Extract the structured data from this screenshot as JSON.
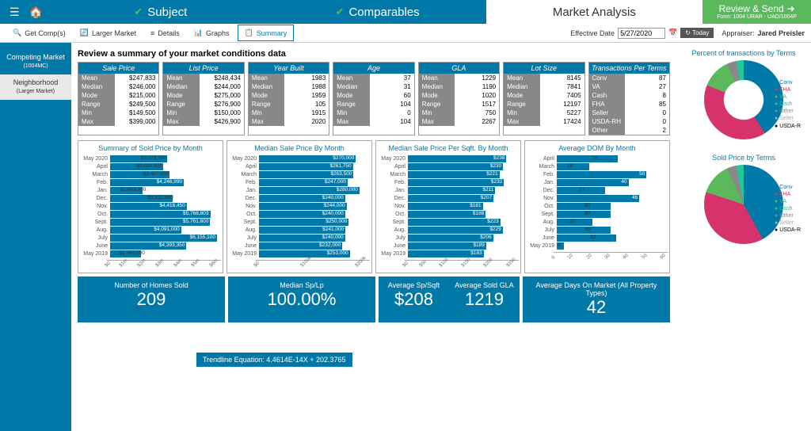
{
  "topbar": {
    "tabs": [
      {
        "label": "Subject",
        "checked": true
      },
      {
        "label": "Comparables",
        "checked": true
      },
      {
        "label": "Market Analysis",
        "active": true
      }
    ],
    "review": {
      "label": "Review & Send",
      "sub": "Form: 1004 URAR - UAD/1004P"
    }
  },
  "subbar": {
    "items": [
      "Get Comp(s)",
      "Larger Market",
      "Details",
      "Graphs",
      "Summary"
    ],
    "selected": 4,
    "eff_date_label": "Effective Date",
    "eff_date": "5/27/2020",
    "today": "Today",
    "appraiser_label": "Appraiser:",
    "appraiser": "Jared Preisler"
  },
  "sidebar": [
    {
      "label": "Competing Market",
      "sub": "(1004MC)"
    },
    {
      "label": "Neighborhood",
      "sub": "(Larger Market)",
      "sel": true
    }
  ],
  "title": "Review a summary of your market conditions data",
  "stats": [
    {
      "hdr": "Sale Price",
      "rows": [
        [
          "Mean",
          "$247,833"
        ],
        [
          "Median",
          "$246,000"
        ],
        [
          "Mode",
          "$215,000"
        ],
        [
          "Range",
          "$249,500"
        ],
        [
          "Min",
          "$149,500"
        ],
        [
          "Max",
          "$399,000"
        ]
      ]
    },
    {
      "hdr": "List Price",
      "rows": [
        [
          "Mean",
          "$248,434"
        ],
        [
          "Median",
          "$244,000"
        ],
        [
          "Mode",
          "$275,000"
        ],
        [
          "Range",
          "$276,900"
        ],
        [
          "Min",
          "$150,000"
        ],
        [
          "Max",
          "$426,900"
        ]
      ]
    },
    {
      "hdr": "Year Built",
      "rows": [
        [
          "Mean",
          "1983"
        ],
        [
          "Median",
          "1988"
        ],
        [
          "Mode",
          "1959"
        ],
        [
          "Range",
          "105"
        ],
        [
          "Min",
          "1915"
        ],
        [
          "Max",
          "2020"
        ]
      ]
    },
    {
      "hdr": "Age",
      "rows": [
        [
          "Mean",
          "37"
        ],
        [
          "Median",
          "31"
        ],
        [
          "Mode",
          "60"
        ],
        [
          "Range",
          "104"
        ],
        [
          "Min",
          "0"
        ],
        [
          "Max",
          "104"
        ]
      ]
    },
    {
      "hdr": "GLA",
      "rows": [
        [
          "Mean",
          "1229"
        ],
        [
          "Median",
          "1190"
        ],
        [
          "Mode",
          "1020"
        ],
        [
          "Range",
          "1517"
        ],
        [
          "Min",
          "750"
        ],
        [
          "Max",
          "2267"
        ]
      ]
    },
    {
      "hdr": "Lot Size",
      "rows": [
        [
          "Mean",
          "8145"
        ],
        [
          "Median",
          "7841"
        ],
        [
          "Mode",
          "7405"
        ],
        [
          "Range",
          "12197"
        ],
        [
          "Min",
          "5227"
        ],
        [
          "Max",
          "17424"
        ]
      ]
    },
    {
      "hdr": "Transactions Per Terms",
      "rows": [
        [
          "Conv",
          "87"
        ],
        [
          "VA",
          "27"
        ],
        [
          "Cash",
          "8"
        ],
        [
          "FHA",
          "85"
        ],
        [
          "Seller",
          "0"
        ],
        [
          "USDA-RH",
          "0"
        ],
        [
          "Other",
          "2"
        ]
      ]
    }
  ],
  "charts": [
    {
      "title": "Summary of Sold Price by Month",
      "max": 6200000,
      "fmt": "$",
      "bars": [
        {
          "l": "May 2020",
          "v": 3273700,
          "t": "$3,273,700"
        },
        {
          "l": "April",
          "v": 3039500,
          "t": "$3,039,500"
        },
        {
          "l": "March",
          "v": 3407650,
          "t": "$3,407,650"
        },
        {
          "l": "Feb.",
          "v": 4246990,
          "t": "$4,246,990"
        },
        {
          "l": "Jan.",
          "v": 1863900,
          "t": "$1,863,900"
        },
        {
          "l": "Dec.",
          "v": 3622900,
          "t": "$3,622,900"
        },
        {
          "l": "Nov.",
          "v": 4416450,
          "t": "$4,416,450"
        },
        {
          "l": "Oct.",
          "v": 5768803,
          "t": "$5,768,803"
        },
        {
          "l": "Sept.",
          "v": 5761800,
          "t": "$5,761,800"
        },
        {
          "l": "Aug.",
          "v": 4091000,
          "t": "$4,091,000"
        },
        {
          "l": "July",
          "v": 6155100,
          "t": "$6,155,100"
        },
        {
          "l": "June",
          "v": 4393350,
          "t": "$4,393,350"
        },
        {
          "l": "May 2019",
          "v": 1762000,
          "t": "$1,762,000"
        }
      ],
      "axis": [
        "$0",
        "$1m",
        "$2m",
        "$3m",
        "$4m",
        "$5m",
        "$6m"
      ]
    },
    {
      "title": "Median Sale Price By Month",
      "max": 300000,
      "bars": [
        {
          "l": "May 2020",
          "v": 270000,
          "t": "$270,000"
        },
        {
          "l": "April",
          "v": 261750,
          "t": "$261,750"
        },
        {
          "l": "March",
          "v": 263500,
          "t": "$263,500"
        },
        {
          "l": "Feb.",
          "v": 247000,
          "t": "$247,000"
        },
        {
          "l": "Jan.",
          "v": 280000,
          "t": "$280,000"
        },
        {
          "l": "Dec.",
          "v": 240000,
          "t": "$240,000"
        },
        {
          "l": "Nov.",
          "v": 244000,
          "t": "$244,000"
        },
        {
          "l": "Oct.",
          "v": 240000,
          "t": "$240,000"
        },
        {
          "l": "Sept.",
          "v": 250000,
          "t": "$250,000"
        },
        {
          "l": "Aug.",
          "v": 241000,
          "t": "$241,000"
        },
        {
          "l": "July",
          "v": 240000,
          "t": "$240,000"
        },
        {
          "l": "June",
          "v": 232000,
          "t": "$232,000"
        },
        {
          "l": "May 2019",
          "v": 253000,
          "t": "$253,000"
        }
      ],
      "axis": [
        "$0",
        "$100k",
        "$200k"
      ]
    },
    {
      "title": "Median Sale Price Per Sqft. By Month",
      "max": 260,
      "bars": [
        {
          "l": "May 2020",
          "v": 238,
          "t": "$238"
        },
        {
          "l": "April",
          "v": 230,
          "t": "$230"
        },
        {
          "l": "March",
          "v": 221,
          "t": "$221"
        },
        {
          "l": "Feb.",
          "v": 232,
          "t": "$232"
        },
        {
          "l": "Jan.",
          "v": 211,
          "t": "$211"
        },
        {
          "l": "Dec.",
          "v": 207,
          "t": "$207"
        },
        {
          "l": "Nov.",
          "v": 181,
          "t": "$181"
        },
        {
          "l": "Oct.",
          "v": 188,
          "t": "$188"
        },
        {
          "l": "Sept.",
          "v": 223,
          "t": "$223"
        },
        {
          "l": "Aug.",
          "v": 229,
          "t": "$229"
        },
        {
          "l": "July",
          "v": 206,
          "t": "$206"
        },
        {
          "l": "June",
          "v": 189,
          "t": "$189"
        },
        {
          "l": "May 2019",
          "v": 183,
          "t": "$183"
        }
      ],
      "axis": [
        "$0",
        "$50",
        "$100",
        "$150",
        "$200",
        "$250"
      ]
    },
    {
      "title": "Average DOM By Month",
      "max": 60,
      "bars": [
        {
          "l": "April",
          "v": 34,
          "t": "34"
        },
        {
          "l": "March",
          "v": 18,
          "t": "18"
        },
        {
          "l": "Feb.",
          "v": 50,
          "t": "50"
        },
        {
          "l": "Jan.",
          "v": 40,
          "t": "40"
        },
        {
          "l": "Dec.",
          "v": 27,
          "t": "27"
        },
        {
          "l": "Nov.",
          "v": 46,
          "t": "46"
        },
        {
          "l": "Oct.",
          "v": 30,
          "t": "30"
        },
        {
          "l": "Sept.",
          "v": 30,
          "t": "30"
        },
        {
          "l": "Aug.",
          "v": 20,
          "t": "20"
        },
        {
          "l": "July",
          "v": 30,
          "t": "30"
        },
        {
          "l": "June",
          "v": 33,
          "t": "33"
        },
        {
          "l": "May 2019",
          "v": 4,
          "t": "4"
        }
      ],
      "axis": [
        "0",
        "10",
        "20",
        "30",
        "40",
        "50",
        "60"
      ]
    }
  ],
  "summary": [
    {
      "label": "Number of Homes Sold",
      "value": "209"
    },
    {
      "label": "Median Sp/Lp",
      "value": "100.00%"
    },
    {
      "split": [
        {
          "label": "Average Sp/Sqft",
          "value": "$208"
        },
        {
          "label": "Average Sold GLA",
          "value": "1219"
        }
      ]
    },
    {
      "label": "Average Days On Market (All Property Types)",
      "value": "42"
    }
  ],
  "trendline": "Trendline Equation: 4.4614E-14X + 202.3765",
  "piecharts": [
    {
      "title": "Percent of transactions by Terms",
      "type": "donut",
      "slices": [
        {
          "c": "#0078a8",
          "p": 41
        },
        {
          "c": "#d6336c",
          "p": 40
        },
        {
          "c": "#5cb85c",
          "p": 12
        },
        {
          "c": "#888",
          "p": 4
        },
        {
          "c": "#20c997",
          "p": 3
        }
      ],
      "legend": [
        "Conv",
        "FHA",
        "VA",
        "Cash",
        "Other",
        "Seller",
        "USDA-R"
      ]
    },
    {
      "title": "Sold Price by Terms",
      "type": "pie",
      "slices": [
        {
          "c": "#0078a8",
          "p": 42
        },
        {
          "c": "#d6336c",
          "p": 38
        },
        {
          "c": "#5cb85c",
          "p": 13
        },
        {
          "c": "#888",
          "p": 4
        },
        {
          "c": "#20c997",
          "p": 3
        }
      ],
      "legend": [
        "Conv",
        "FHA",
        "VA",
        "Cash",
        "Other",
        "Seller",
        "USDA-R"
      ]
    }
  ],
  "colors": {
    "legend": [
      "#0078a8",
      "#d6336c",
      "#5cb85c",
      "#20c997",
      "#888",
      "#aaa",
      "#000"
    ]
  }
}
